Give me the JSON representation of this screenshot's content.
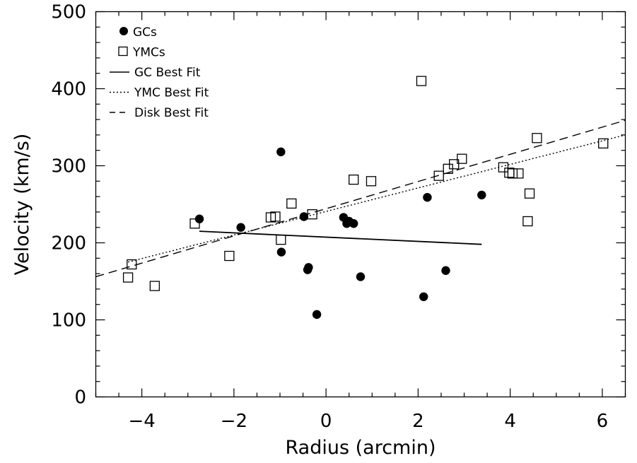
{
  "chart_data": {
    "type": "scatter",
    "title": "",
    "xlabel": "Radius (arcmin)",
    "ylabel": "Velocity (km/s)",
    "xlim": [
      -5,
      6.5
    ],
    "ylim": [
      0,
      500
    ],
    "xticks": [
      -4,
      -2,
      0,
      2,
      4,
      6
    ],
    "xtick_labels": [
      "−4",
      "−2",
      "0",
      "2",
      "4",
      "6"
    ],
    "yticks": [
      0,
      100,
      200,
      300,
      400,
      500
    ],
    "ytick_labels": [
      "0",
      "100",
      "200",
      "300",
      "400",
      "500"
    ],
    "grid": false,
    "legend_position": "top-left",
    "series": [
      {
        "name": "GCs",
        "marker": "filled-circle",
        "color": "#000000",
        "points": [
          [
            -2.75,
            231
          ],
          [
            -1.85,
            220
          ],
          [
            -0.98,
            318
          ],
          [
            -0.97,
            188
          ],
          [
            -0.48,
            234
          ],
          [
            -0.4,
            165
          ],
          [
            -0.38,
            168
          ],
          [
            -0.2,
            107
          ],
          [
            0.38,
            233
          ],
          [
            0.45,
            225
          ],
          [
            0.5,
            228
          ],
          [
            0.6,
            225
          ],
          [
            0.75,
            156
          ],
          [
            2.12,
            130
          ],
          [
            2.2,
            259
          ],
          [
            2.6,
            164
          ],
          [
            3.38,
            262
          ]
        ]
      },
      {
        "name": "YMCs",
        "marker": "open-square",
        "color": "#000000",
        "points": [
          [
            -4.3,
            155
          ],
          [
            -4.22,
            172
          ],
          [
            -3.72,
            144
          ],
          [
            -2.85,
            225
          ],
          [
            -2.1,
            183
          ],
          [
            -1.2,
            233
          ],
          [
            -1.1,
            234
          ],
          [
            -0.98,
            204
          ],
          [
            -0.75,
            251
          ],
          [
            -0.3,
            237
          ],
          [
            0.6,
            282
          ],
          [
            0.98,
            280
          ],
          [
            2.07,
            410
          ],
          [
            2.45,
            287
          ],
          [
            2.65,
            296
          ],
          [
            2.78,
            302
          ],
          [
            2.95,
            309
          ],
          [
            3.85,
            298
          ],
          [
            3.98,
            291
          ],
          [
            4.05,
            290
          ],
          [
            4.18,
            290
          ],
          [
            4.38,
            228
          ],
          [
            4.42,
            264
          ],
          [
            4.58,
            336
          ],
          [
            6.02,
            329
          ]
        ]
      }
    ],
    "fits": [
      {
        "name": "GC Best Fit",
        "style": "solid",
        "x": [
          -2.75,
          3.38
        ],
        "y": [
          215,
          198
        ]
      },
      {
        "name": "YMC Best Fit",
        "style": "dotted",
        "x": [
          -4.3,
          6.5
        ],
        "y": [
          175,
          340
        ]
      },
      {
        "name": "Disk Best Fit",
        "style": "dashed",
        "x": [
          -5.0,
          6.5
        ],
        "y": [
          156,
          359
        ]
      }
    ]
  }
}
